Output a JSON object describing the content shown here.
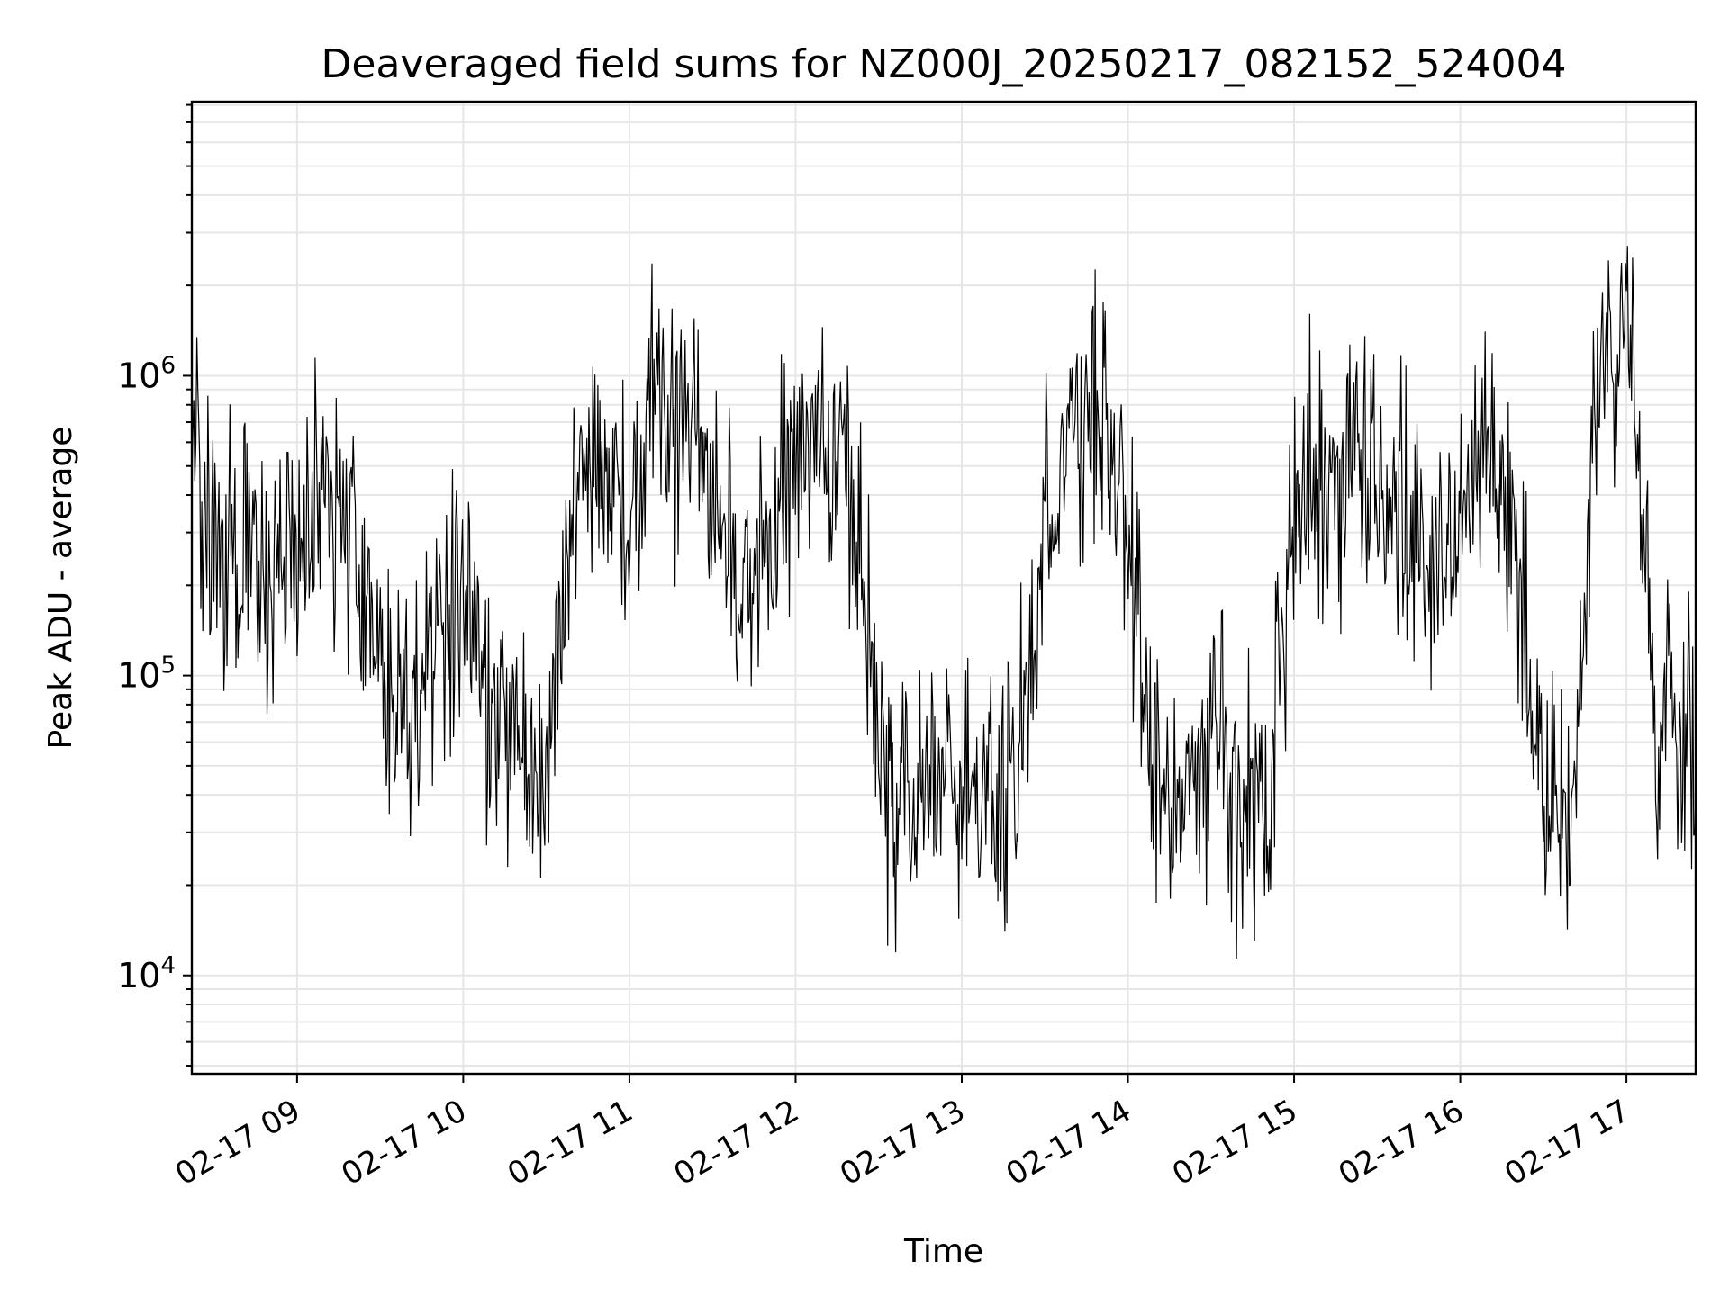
{
  "chart_data": {
    "type": "line",
    "title": "Deaveraged field sums for NZ000J_20250217_082152_524004",
    "xlabel": "Time",
    "ylabel": "Peak ADU - average",
    "y_scale": "log",
    "ylim": [
      4700,
      8200000
    ],
    "xlim": [
      "2025-02-17 08:22",
      "2025-02-17 17:25"
    ],
    "grid": true,
    "line_color": "#000000",
    "grid_color": "#e6e6e6",
    "x_tick_labels": [
      "02-17 09",
      "02-17 10",
      "02-17 11",
      "02-17 12",
      "02-17 13",
      "02-17 14",
      "02-17 15",
      "02-17 16",
      "02-17 17"
    ],
    "y_tick_labels": [
      {
        "value": 10000,
        "base": "10",
        "exp": "4"
      },
      {
        "value": 100000,
        "base": "10",
        "exp": "5"
      },
      {
        "value": 1000000,
        "base": "10",
        "exp": "6"
      }
    ],
    "series": [
      {
        "x": [
          "08:22",
          "08:30",
          "08:40",
          "08:50",
          "09:00",
          "09:10",
          "09:20",
          "09:30",
          "09:40",
          "09:50",
          "10:00",
          "10:10",
          "10:20",
          "10:30",
          "10:40",
          "10:50",
          "11:00",
          "11:10",
          "11:20",
          "11:30",
          "11:40",
          "11:50",
          "12:00",
          "12:10",
          "12:20",
          "12:30",
          "12:40",
          "12:50",
          "13:00",
          "13:10",
          "13:20",
          "13:30",
          "13:40",
          "13:50",
          "14:00",
          "14:10",
          "14:20",
          "14:30",
          "14:40",
          "14:50",
          "15:00",
          "15:10",
          "15:20",
          "15:30",
          "15:40",
          "15:50",
          "16:00",
          "16:10",
          "16:20",
          "16:30",
          "16:40",
          "16:50",
          "17:00",
          "17:10",
          "17:20",
          "17:25"
        ],
        "y": [
          500000,
          300000,
          250000,
          200000,
          300000,
          350000,
          250000,
          120000,
          60000,
          150000,
          200000,
          80000,
          60000,
          40000,
          350000,
          600000,
          400000,
          800000,
          700000,
          450000,
          200000,
          300000,
          500000,
          700000,
          500000,
          50000,
          40000,
          40000,
          45000,
          40000,
          50000,
          300000,
          600000,
          900000,
          300000,
          40000,
          35000,
          70000,
          40000,
          35000,
          400000,
          500000,
          500000,
          450000,
          350000,
          200000,
          300000,
          600000,
          300000,
          40000,
          30000,
          1200000,
          1500000,
          70000,
          80000,
          70000
        ]
      }
    ]
  }
}
